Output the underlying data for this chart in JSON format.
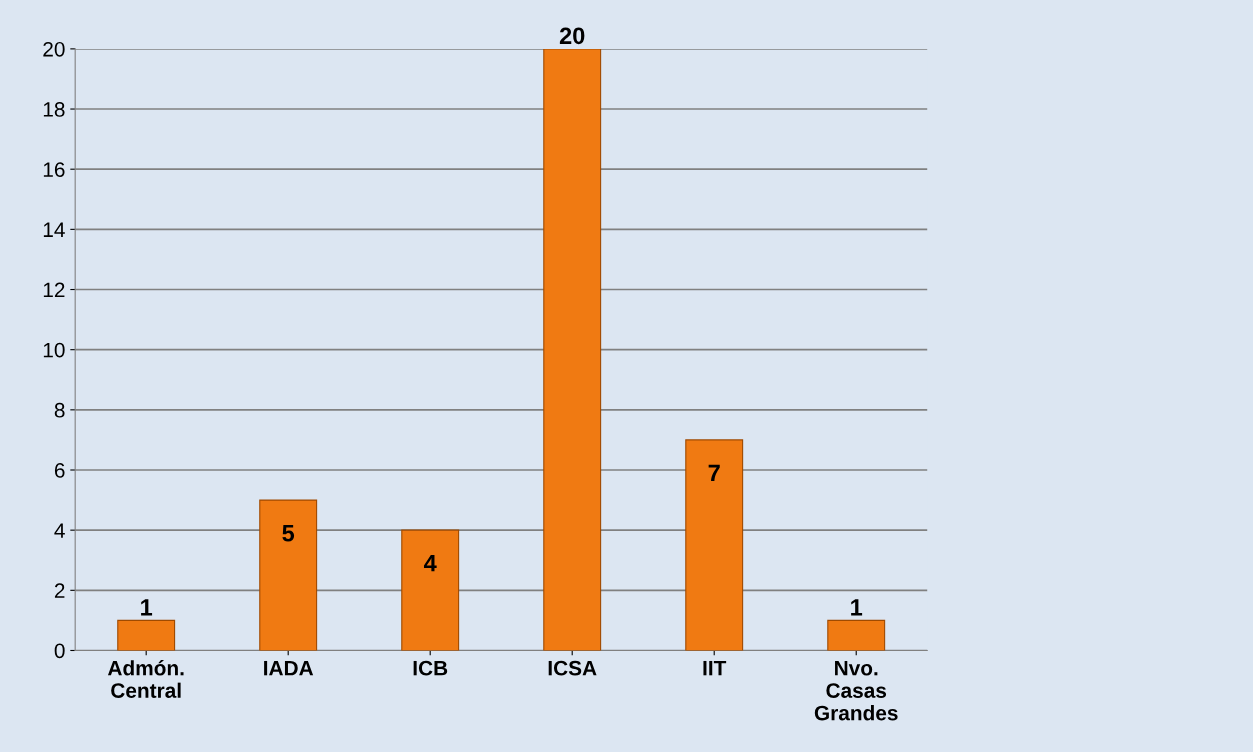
{
  "chart_data": {
    "type": "bar",
    "categories": [
      "Admón.\nCentral",
      "IADA",
      "ICB",
      "ICSA",
      "IIT",
      "Nvo.\nCasas\nGrandes"
    ],
    "values": [
      1,
      5,
      4,
      20,
      7,
      1
    ],
    "color": "#f07a12",
    "ylim": [
      0,
      20
    ],
    "yticks": [
      0,
      2,
      4,
      6,
      8,
      10,
      12,
      14,
      16,
      18,
      20
    ],
    "grid": "y",
    "legend": false,
    "data_labels": true
  }
}
